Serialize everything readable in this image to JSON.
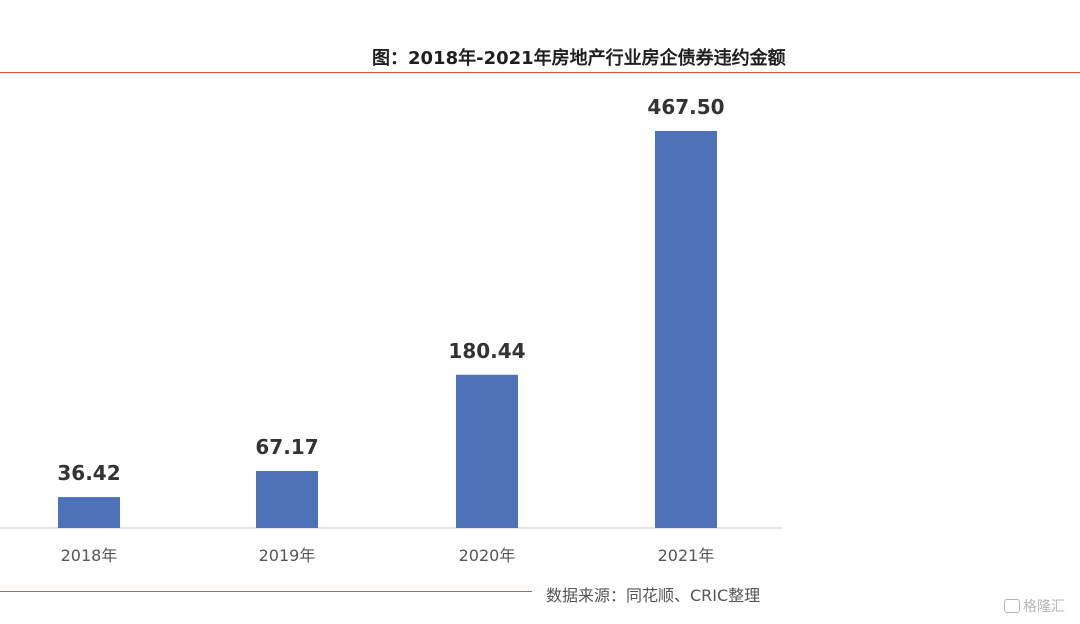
{
  "title": "图：2018年-2021年房地产行业房企债券违约金额",
  "source": "数据来源：同花顺、CRIC整理",
  "watermark": "格隆汇",
  "colors": {
    "bar": "#4e72b8",
    "accent_rule": "#e0533a"
  },
  "chart_data": {
    "type": "bar",
    "title": "图：2018年-2021年房地产行业房企债券违约金额",
    "categories": [
      "2018年",
      "2019年",
      "2020年",
      "2021年"
    ],
    "values": [
      36.42,
      67.17,
      180.44,
      467.5
    ],
    "value_labels": [
      "36.42",
      "67.17",
      "180.44",
      "467.50"
    ],
    "xlabel": "",
    "ylabel": "",
    "ylim": [
      0,
      500
    ],
    "grid": false,
    "legend": "none"
  }
}
